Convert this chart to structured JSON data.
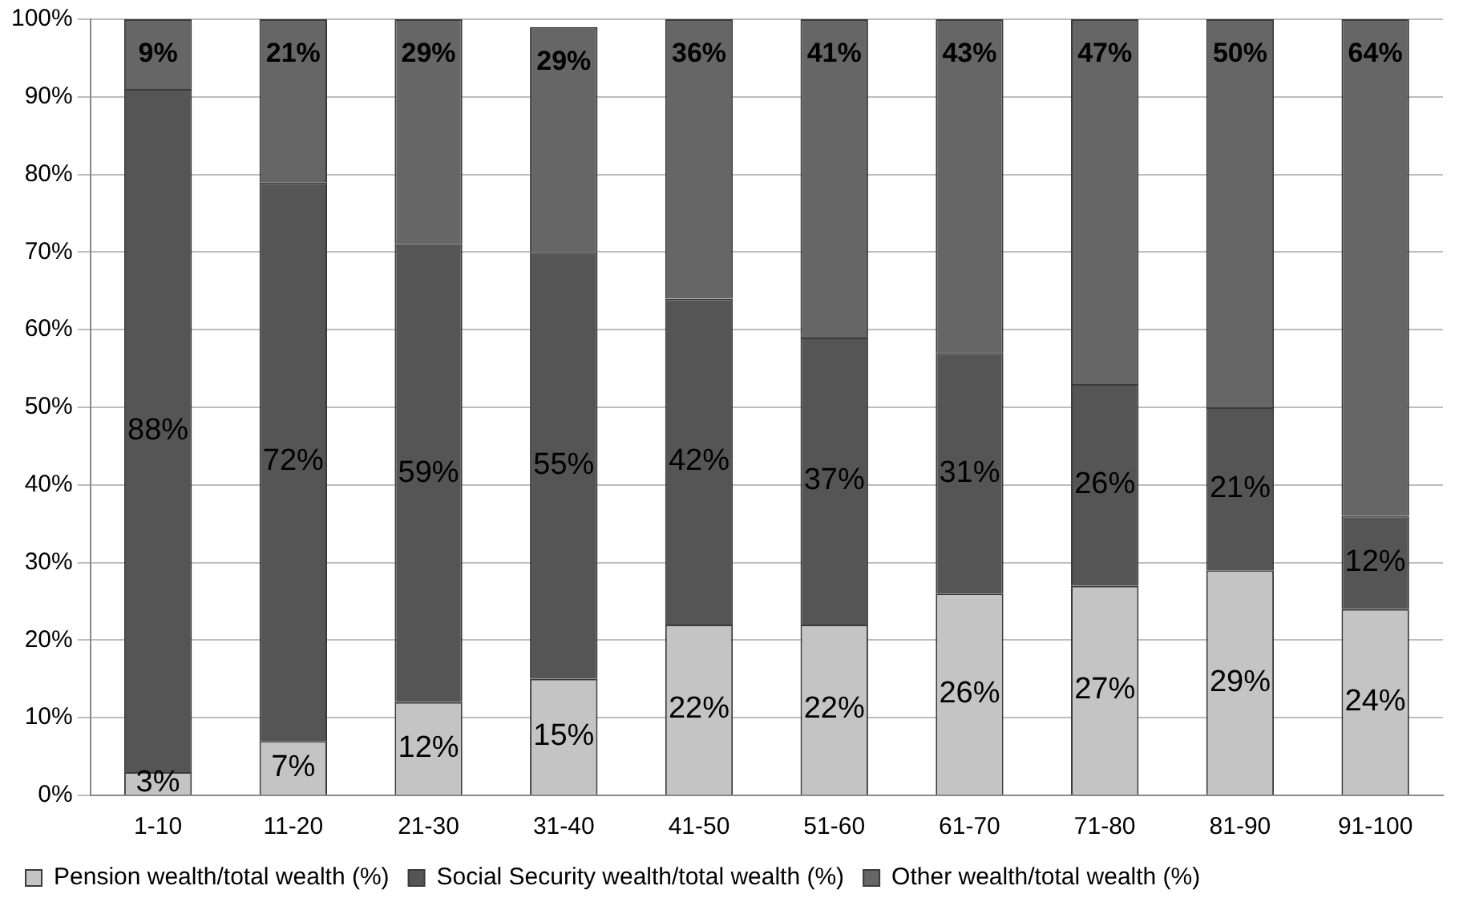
{
  "chart_data": {
    "type": "bar",
    "stacked": true,
    "categories": [
      "1-10",
      "11-20",
      "21-30",
      "31-40",
      "41-50",
      "51-60",
      "61-70",
      "71-80",
      "81-90",
      "91-100"
    ],
    "series": [
      {
        "name": "Pension wealth/total wealth (%)",
        "color": "#c4c4c4",
        "values": [
          3,
          7,
          12,
          15,
          22,
          22,
          26,
          27,
          29,
          24
        ],
        "value_labels": [
          "3%",
          "7%",
          "12%",
          "15%",
          "22%",
          "22%",
          "26%",
          "27%",
          "29%",
          "24%"
        ]
      },
      {
        "name": "Social Security wealth/total wealth (%)",
        "color": "#555555",
        "values": [
          88,
          72,
          59,
          55,
          42,
          37,
          31,
          26,
          21,
          12
        ],
        "value_labels": [
          "88%",
          "72%",
          "59%",
          "55%",
          "42%",
          "37%",
          "31%",
          "26%",
          "21%",
          "12%"
        ]
      },
      {
        "name": "Other wealth/total wealth (%)",
        "color": "#666666",
        "values": [
          9,
          21,
          29,
          29,
          36,
          41,
          43,
          47,
          50,
          64
        ],
        "value_labels": [
          "9%",
          "21%",
          "29%",
          "29%",
          "36%",
          "41%",
          "43%",
          "47%",
          "50%",
          "64%"
        ]
      }
    ],
    "ylim": [
      0,
      100
    ],
    "yticks": [
      {
        "value": 0,
        "label": "0%"
      },
      {
        "value": 10,
        "label": "10%"
      },
      {
        "value": 20,
        "label": "20%"
      },
      {
        "value": 30,
        "label": "30%"
      },
      {
        "value": 40,
        "label": "40%"
      },
      {
        "value": 50,
        "label": "50%"
      },
      {
        "value": 60,
        "label": "60%"
      },
      {
        "value": 70,
        "label": "70%"
      },
      {
        "value": 80,
        "label": "80%"
      },
      {
        "value": 90,
        "label": "90%"
      },
      {
        "value": 100,
        "label": "100%"
      }
    ],
    "grid": "y",
    "legend": "bottom"
  }
}
